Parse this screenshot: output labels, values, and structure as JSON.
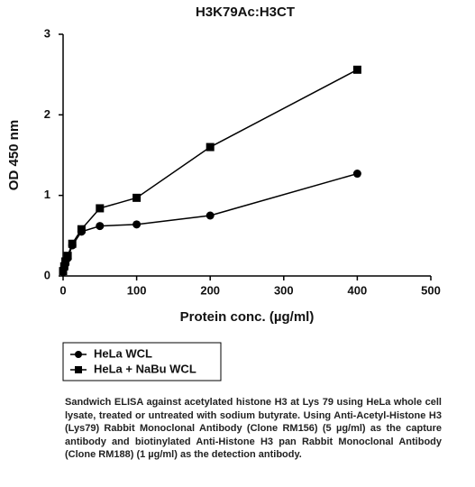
{
  "chart_data": {
    "type": "scatter",
    "title": "H3K79Ac:H3CT",
    "x_label": "Protein conc. (µg/ml)",
    "y_label": "OD 450 nm",
    "x": [
      0,
      1.5625,
      3.125,
      6.25,
      12.5,
      25,
      50,
      100,
      200,
      400
    ],
    "series": [
      {
        "name": "HeLa WCL",
        "marker": "circle",
        "color": "#000000",
        "values": [
          0.05,
          0.1,
          0.15,
          0.22,
          0.38,
          0.55,
          0.62,
          0.64,
          0.75,
          1.27
        ]
      },
      {
        "name": "HeLa + NaBu WCL",
        "marker": "square",
        "color": "#000000",
        "values": [
          0.06,
          0.12,
          0.18,
          0.25,
          0.4,
          0.58,
          0.84,
          0.97,
          1.6,
          2.56
        ]
      }
    ],
    "xlim": [
      0,
      500
    ],
    "ylim": [
      0,
      3
    ],
    "xticks": [
      0,
      100,
      200,
      300,
      400,
      500
    ],
    "yticks": [
      0,
      1,
      2,
      3
    ],
    "legend": "below"
  },
  "caption": "Sandwich ELISA against acetylated histone H3 at Lys 79 using HeLa whole cell lysate, treated or untreated with sodium butyrate. Using Anti-Acetyl-Histone H3 (Lys79) Rabbit Monoclonal Antibody (Clone RM156) (5 µg/ml) as the capture antibody and biotinylated Anti-Histone H3 pan Rabbit Monoclonal Antibody (Clone RM188) (1 µg/ml) as the detection antibody."
}
